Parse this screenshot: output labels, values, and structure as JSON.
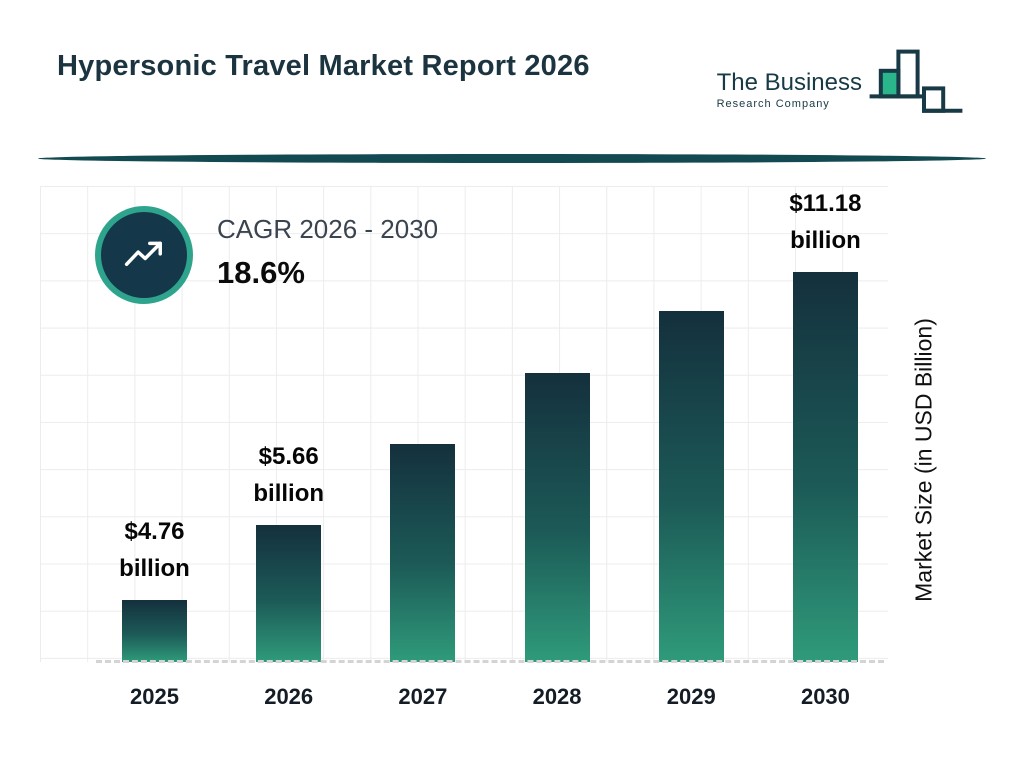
{
  "header": {
    "title": "Hypersonic Travel Market Report 2026",
    "logo": {
      "line1": "The Business",
      "line2": "Research Company"
    }
  },
  "cagr": {
    "label": "CAGR 2026 - 2030",
    "value": "18.6%"
  },
  "chart_data": {
    "type": "bar",
    "title": "Hypersonic Travel Market Report 2026",
    "categories": [
      "2025",
      "2026",
      "2027",
      "2028",
      "2029",
      "2030"
    ],
    "values": [
      4.76,
      5.66,
      6.71,
      7.96,
      9.44,
      11.18
    ],
    "value_label_lines": [
      [
        "$4.76",
        "billion"
      ],
      [
        "$5.66",
        "billion"
      ],
      null,
      null,
      null,
      [
        "$11.18",
        "billion"
      ]
    ],
    "xlabel": "",
    "ylabel": "Market Size (in USD Billion)",
    "ylim": [
      0,
      11.18
    ],
    "grid": true,
    "legend": false,
    "cagr_2026_2030": "18.6%",
    "bar_display_height_pct": [
      16,
      35,
      56,
      74,
      90,
      100
    ],
    "colors": {
      "bar_gradient_top": "#14303D",
      "bar_gradient_bottom": "#2F9B7A",
      "accent_teal": "#2EA48C",
      "dark_navy": "#14374A",
      "logo_green": "#2BB58A",
      "divider": "#134A52",
      "grid_line": "#ECECEC"
    }
  }
}
